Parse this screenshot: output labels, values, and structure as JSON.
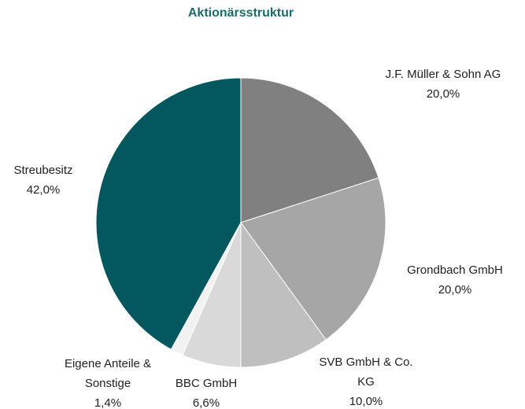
{
  "chart_data": {
    "type": "pie",
    "title": "Aktionärsstruktur",
    "categories": [
      "J.F. Müller & Sohn AG",
      "Grondbach GmbH",
      "SVB GmbH & Co. KG",
      "BBC GmbH",
      "Eigene Anteile & Sonstige",
      "Streubesitz"
    ],
    "values": [
      20,
      20,
      10,
      6.6,
      1.4,
      42
    ],
    "value_labels": [
      "20,0%",
      "20,0%",
      "10,0%",
      "6,6%",
      "1,4%",
      "42,0%"
    ],
    "colors": [
      "#808080",
      "#a6a6a6",
      "#bfbfbf",
      "#d9d9d9",
      "#f2f2f2",
      "#02585e"
    ]
  }
}
